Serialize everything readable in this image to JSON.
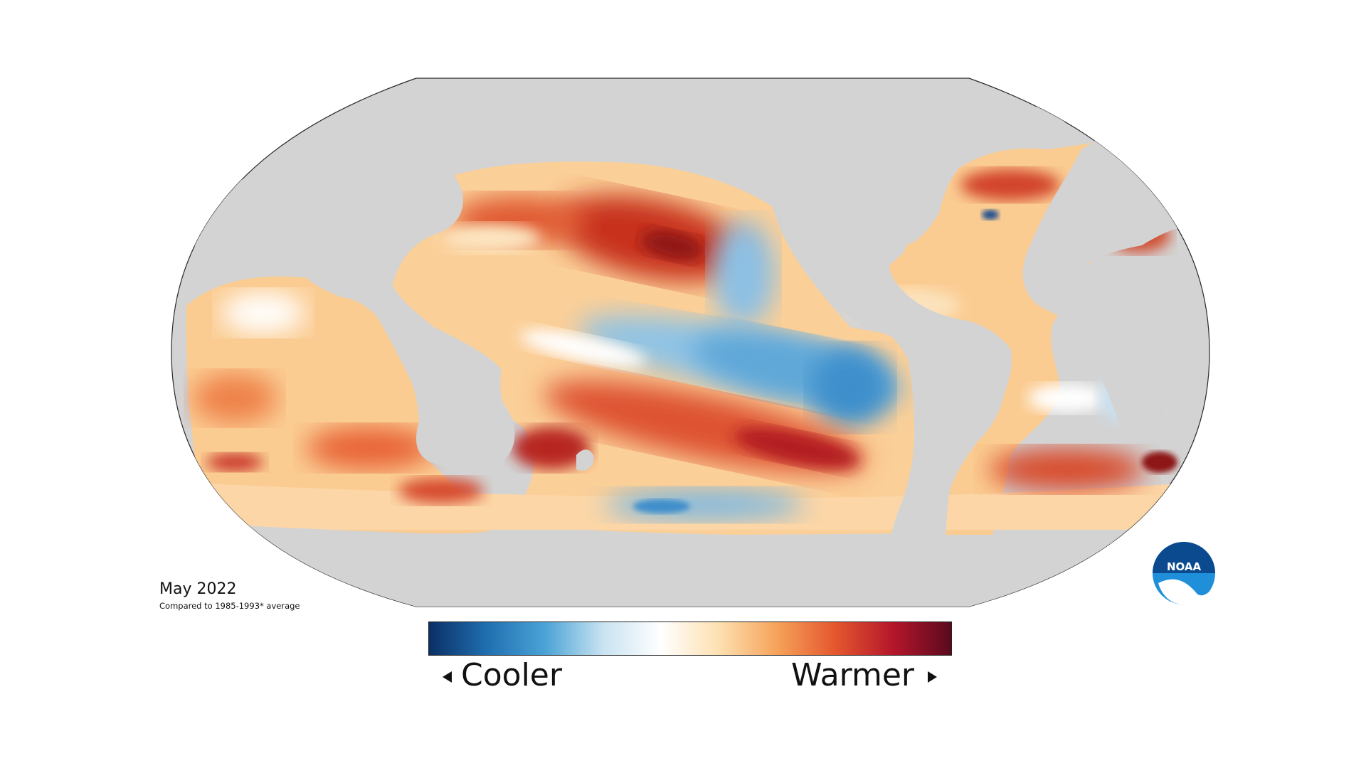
{
  "map": {
    "title": "May 2022",
    "subtitle": "Compared to 1985-1993* average",
    "land_color": "#d3d3d3",
    "ocean_palette": [
      "#08306b",
      "#1f78b4",
      "#9ecae1",
      "#ffffff",
      "#fdbf6f",
      "#ef6548",
      "#c1272d",
      "#67001f"
    ]
  },
  "legend": {
    "cooler": "Cooler",
    "warmer": "Warmer",
    "gradient": [
      "#0b2f66",
      "#1f6fb0",
      "#4aa3d6",
      "#c9e3f1",
      "#ffffff",
      "#fde0b0",
      "#f6a25a",
      "#e4572e",
      "#b5162b",
      "#5a0a1e"
    ]
  },
  "logo": {
    "text": "NOAA",
    "icon": "noaa-logo-icon",
    "color_dark": "#0b4a8f",
    "color_light": "#1f8fd9"
  }
}
